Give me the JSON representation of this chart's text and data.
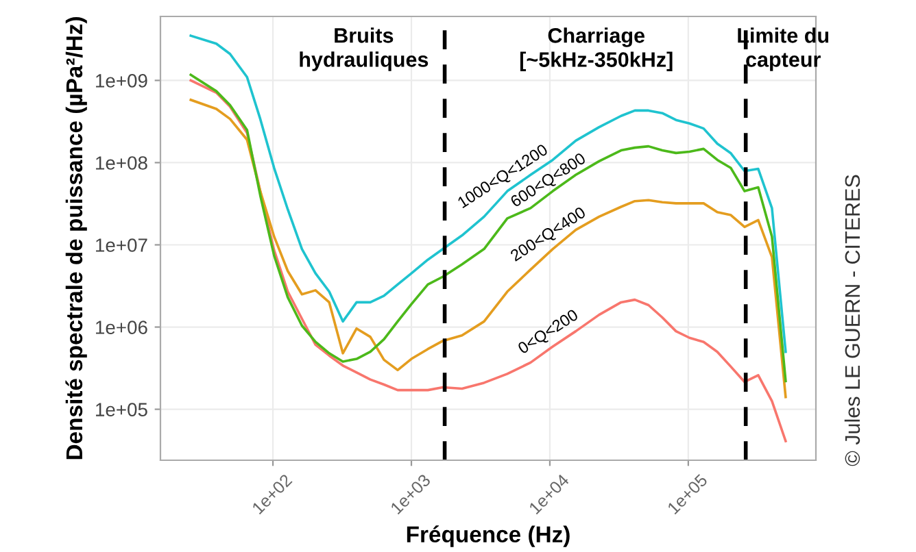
{
  "chart_data": {
    "type": "line",
    "xlabel": "Fréquence (Hz)",
    "ylabel": "Densité spectrale de puissance (µPa²/Hz)",
    "log": "xy",
    "grid": true,
    "legend": false,
    "line_style": "solid",
    "marker": "none",
    "x": [
      25.5,
      39,
      49,
      65,
      81,
      102,
      128,
      162,
      203,
      255,
      320,
      402,
      505,
      634,
      796,
      1000,
      1315,
      1690,
      2320,
      3350,
      4930,
      7260,
      10500,
      15400,
      22700,
      32700,
      41100,
      51600,
      64900,
      81500,
      102000,
      129000,
      162000,
      203000,
      255000,
      320000,
      402000,
      505000
    ],
    "series": [
      {
        "name": "0<Q<200",
        "color": "#f8766d",
        "values": [
          1000000000.0,
          710000000.0,
          480000000.0,
          230000000.0,
          45000000.0,
          8600000.0,
          2700000.0,
          1260000.0,
          610000.0,
          450000.0,
          340000.0,
          280000.0,
          230000.0,
          200000.0,
          171000.0,
          171000.0,
          171000.0,
          185000.0,
          178000.0,
          210000.0,
          270000.0,
          370000.0,
          580000.0,
          890000.0,
          1410000.0,
          2000000.0,
          2150000.0,
          1850000.0,
          1310000.0,
          890000.0,
          740000.0,
          660000.0,
          500000.0,
          330000.0,
          215000.0,
          260000.0,
          126000.0,
          41000.0
        ]
      },
      {
        "name": "200<Q<400",
        "color": "#e49d1f",
        "values": [
          580000000.0,
          450000000.0,
          340000000.0,
          190000000.0,
          45000000.0,
          12600000.0,
          4800000.0,
          2500000.0,
          2800000.0,
          2000000.0,
          480000.0,
          960000.0,
          760000.0,
          400000.0,
          300000.0,
          410000.0,
          540000.0,
          680000.0,
          790000.0,
          1170000.0,
          2700000.0,
          5000000.0,
          8900000.0,
          15200000.0,
          22000000.0,
          29000000.0,
          34000000.0,
          35000000.0,
          33000000.0,
          32000000.0,
          32000000.0,
          32000000.0,
          25000000.0,
          23000000.0,
          16500000.0,
          20000000.0,
          7100000.0,
          141000.0
        ]
      },
      {
        "name": "600<Q<800",
        "color": "#4cb91a",
        "values": [
          1170000000.0,
          740000000.0,
          500000000.0,
          250000000.0,
          40000000.0,
          7400000.0,
          2300000.0,
          1040000.0,
          660000.0,
          480000.0,
          380000.0,
          410000.0,
          500000.0,
          710000.0,
          1170000.0,
          1900000.0,
          3300000.0,
          4100000.0,
          5800000.0,
          8900000.0,
          21000000.0,
          28000000.0,
          45000000.0,
          71000000.0,
          104000000.0,
          141000000.0,
          152000000.0,
          158000000.0,
          141000000.0,
          131000000.0,
          136000000.0,
          147000000.0,
          108000000.0,
          86000000.0,
          45000000.0,
          50000000.0,
          12600000.0,
          220000.0
        ]
      },
      {
        "name": "1000<Q<1200",
        "color": "#1fc3cf",
        "values": [
          3500000000.0,
          2800000000.0,
          2100000000.0,
          1100000000.0,
          340000000.0,
          86000000.0,
          27000000.0,
          8900000.0,
          4500000.0,
          2700000.0,
          1170000.0,
          2000000.0,
          2000000.0,
          2400000.0,
          3300000.0,
          4500000.0,
          6600000.0,
          8900000.0,
          13000000.0,
          22000000.0,
          45000000.0,
          71000000.0,
          108000000.0,
          185000000.0,
          270000000.0,
          370000000.0,
          430000000.0,
          430000000.0,
          400000000.0,
          330000000.0,
          300000000.0,
          260000000.0,
          170000000.0,
          130000000.0,
          79000000.0,
          84000000.0,
          28000000.0,
          500000.0
        ]
      }
    ],
    "xlim": [
      15.4,
      835000
    ],
    "ylim": [
      24000,
      6000000000
    ],
    "xticks": [
      {
        "value": 100,
        "label": "1e+02"
      },
      {
        "value": 1000,
        "label": "1e+03"
      },
      {
        "value": 10000,
        "label": "1e+04"
      },
      {
        "value": 100000,
        "label": "1e+05"
      }
    ],
    "yticks": [
      {
        "value": 100000,
        "label": "1e+05"
      },
      {
        "value": 1000000,
        "label": "1e+06"
      },
      {
        "value": 10000000,
        "label": "1e+07"
      },
      {
        "value": 100000000,
        "label": "1e+08"
      },
      {
        "value": 1000000000,
        "label": "1e+09"
      }
    ],
    "ref_lines": [
      {
        "axis": "x",
        "value": 1740,
        "color": "#000000",
        "line_style": "dashed"
      },
      {
        "axis": "x",
        "value": 260000,
        "color": "#000000",
        "line_style": "dashed"
      }
    ],
    "annotations": [
      "Bruits\nhydrauliques",
      "Charriage\n[~5kHz-350kHz]",
      "Limite du\ncapteur",
      "© Jules LE GUERN - CITERES"
    ]
  }
}
